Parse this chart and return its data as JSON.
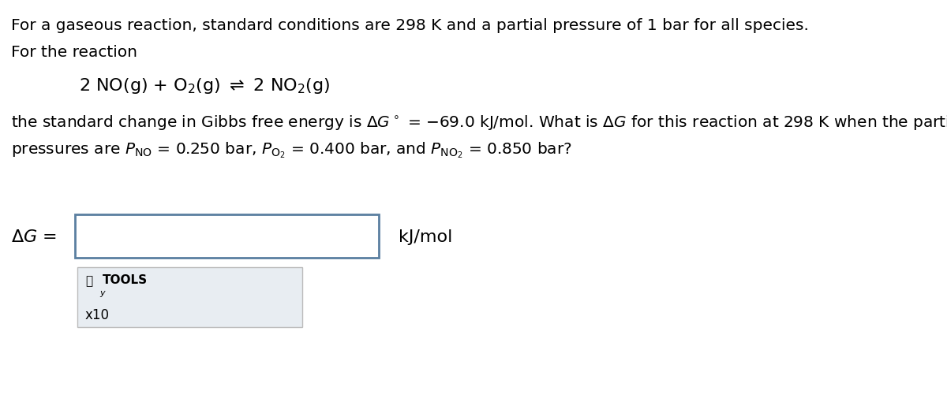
{
  "bg_color": "#ffffff",
  "text_color": "#000000",
  "line1": "For a gaseous reaction, standard conditions are 298 K and a partial pressure of 1 bar for all species.",
  "line2": "For the reaction",
  "line4a": "the standard change in Gibbs free energy is $\\Delta G^\\circ$ = −69.0 kJ/mol. What is $\\Delta G$ for this reaction at 298 K when the partial",
  "line4b": "pressures are $P_{\\mathrm{NO}}$ = 0.250 bar, $P_{\\mathrm{O_2}}$ = 0.400 bar, and $P_{\\mathrm{NO_2}}$ = 0.850 bar?",
  "delta_g_label": "$\\Delta G$ =",
  "unit_label": "kJ/mol",
  "fontsize_body": 14.5,
  "fontsize_reaction": 16,
  "fontsize_label": 16,
  "input_box_color": "#5a7fa0",
  "tools_box_color": "#e8edf2",
  "tools_box_border": "#bbbbbb"
}
